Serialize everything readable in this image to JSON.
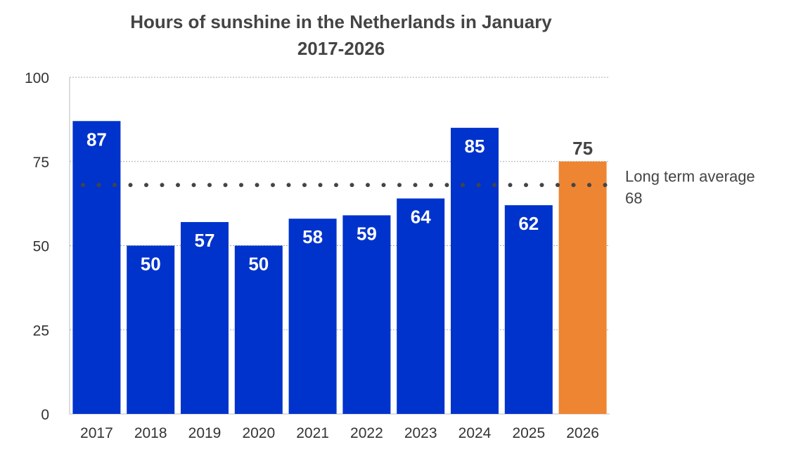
{
  "chart_data": {
    "type": "bar",
    "title": "Hours of sunshine in the Netherlands in January",
    "subtitle": "2017-2026",
    "categories": [
      "2017",
      "2018",
      "2019",
      "2020",
      "2021",
      "2022",
      "2023",
      "2024",
      "2025",
      "2026"
    ],
    "values": [
      87,
      50,
      57,
      50,
      58,
      59,
      64,
      85,
      62,
      75
    ],
    "ylim": [
      0,
      100
    ],
    "yticks": [
      0,
      25,
      50,
      75,
      100
    ],
    "grid": true,
    "colors": {
      "default": "#0033cc",
      "highlight": "#ee8533",
      "highlight_category": "2026"
    },
    "reference_line": {
      "label": "Long term average",
      "value": 68,
      "style": "dotted",
      "color": "#444444"
    }
  }
}
